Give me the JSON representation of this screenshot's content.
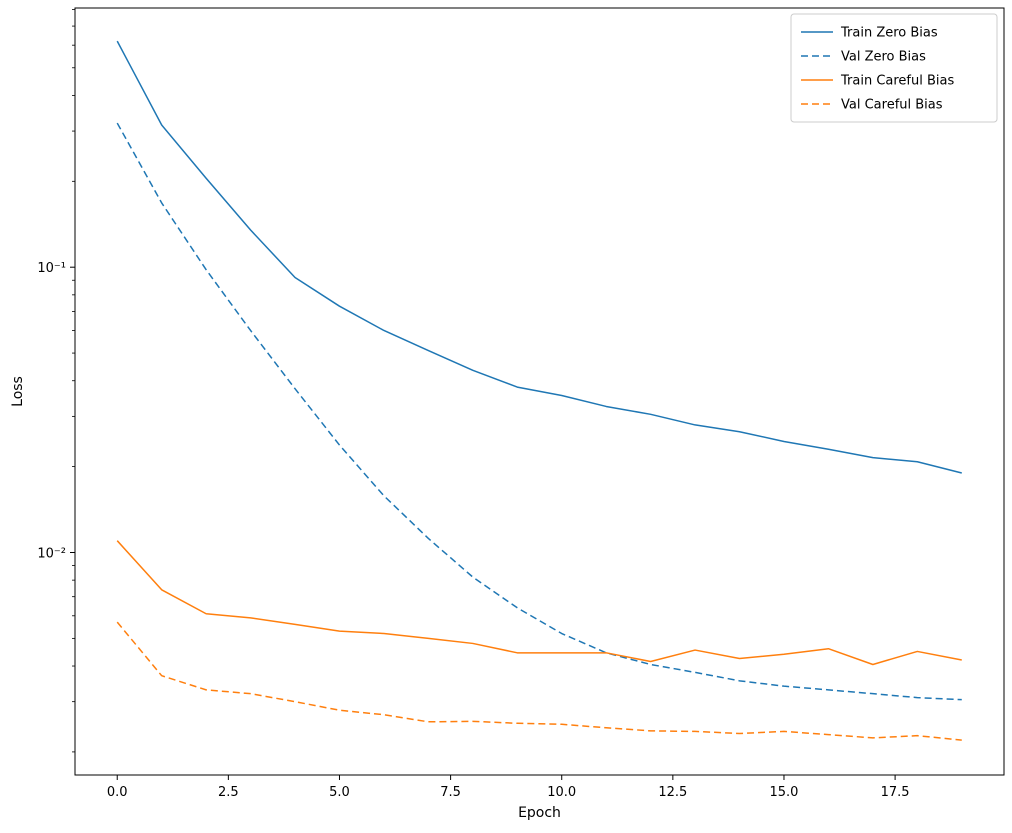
{
  "chart_data": {
    "type": "line",
    "title": "",
    "xlabel": "Epoch",
    "ylabel": "Loss",
    "yscale": "log",
    "grid": false,
    "legend_position": "upper right",
    "xlim": [
      -0.95,
      19.95
    ],
    "ylim": [
      0.00166,
      0.81
    ],
    "xticks": [
      0.0,
      2.5,
      5.0,
      7.5,
      10.0,
      12.5,
      15.0,
      17.5
    ],
    "xtick_labels": [
      "0.0",
      "2.5",
      "5.0",
      "7.5",
      "10.0",
      "12.5",
      "15.0",
      "17.5"
    ],
    "yticks": [
      0.01,
      0.1
    ],
    "ytick_labels": [
      "10⁻²",
      "10⁻¹"
    ],
    "x": [
      0,
      1,
      2,
      3,
      4,
      5,
      6,
      7,
      8,
      9,
      10,
      11,
      12,
      13,
      14,
      15,
      16,
      17,
      18,
      19
    ],
    "series": [
      {
        "name": "Train Zero Bias",
        "color": "#1f77b4",
        "style": "solid",
        "values": [
          0.62,
          0.315,
          0.205,
          0.135,
          0.092,
          0.073,
          0.06,
          0.051,
          0.0435,
          0.038,
          0.0355,
          0.0325,
          0.0305,
          0.028,
          0.0265,
          0.0245,
          0.023,
          0.0215,
          0.0208,
          0.019
        ]
      },
      {
        "name": "Val Zero Bias",
        "color": "#1f77b4",
        "style": "dashed",
        "values": [
          0.32,
          0.168,
          0.098,
          0.06,
          0.0375,
          0.0238,
          0.0158,
          0.0112,
          0.0082,
          0.0064,
          0.0052,
          0.00445,
          0.00405,
          0.0038,
          0.00355,
          0.0034,
          0.0033,
          0.0032,
          0.0031,
          0.00305
        ]
      },
      {
        "name": "Train Careful Bias",
        "color": "#ff7f0e",
        "style": "solid",
        "values": [
          0.011,
          0.0074,
          0.0061,
          0.0059,
          0.0056,
          0.0053,
          0.0052,
          0.005,
          0.0048,
          0.00445,
          0.00445,
          0.00445,
          0.00415,
          0.00455,
          0.00425,
          0.0044,
          0.0046,
          0.00405,
          0.0045,
          0.0042
        ]
      },
      {
        "name": "Val Careful Bias",
        "color": "#ff7f0e",
        "style": "dashed",
        "values": [
          0.0057,
          0.0037,
          0.0033,
          0.0032,
          0.003,
          0.0028,
          0.0027,
          0.00255,
          0.00256,
          0.00252,
          0.0025,
          0.00243,
          0.00237,
          0.00236,
          0.00232,
          0.00236,
          0.0023,
          0.00224,
          0.00228,
          0.0022
        ]
      }
    ],
    "legend": {
      "entries": [
        "Train Zero Bias",
        "Val Zero Bias",
        "Train Careful Bias",
        "Val Careful Bias"
      ]
    },
    "style": {
      "spine_color": "#000000",
      "legend_border_color": "#cccccc",
      "legend_bg_color": "#ffffff",
      "line_width": 1.5
    }
  }
}
